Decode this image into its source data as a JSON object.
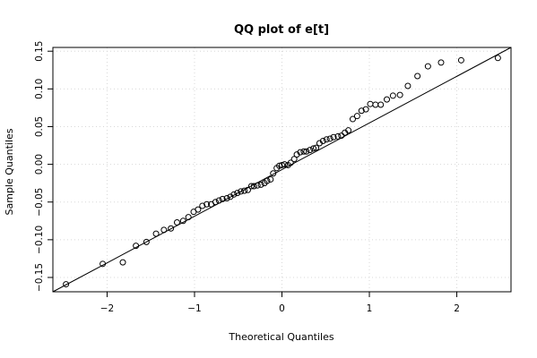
{
  "chart_data": {
    "type": "scatter",
    "title": "QQ plot of e[t]",
    "xlabel": "Theoretical Quantiles",
    "ylabel": "Sample Quantiles",
    "xlim": [
      -2.62,
      2.62
    ],
    "ylim": [
      -0.169,
      0.155
    ],
    "x_ticks": [
      -2,
      -1,
      0,
      1,
      2
    ],
    "y_ticks": [
      -0.15,
      -0.1,
      -0.05,
      0.0,
      0.05,
      0.1,
      0.15
    ],
    "x_tick_labels": [
      "−2",
      "−1",
      "0",
      "1",
      "2"
    ],
    "y_tick_labels": [
      "−0.15",
      "−0.10",
      "−0.05",
      "0.00",
      "0.05",
      "0.10",
      "0.15"
    ],
    "grid": true,
    "reference_line": {
      "x": [
        -2.62,
        2.62
      ],
      "y": [
        -0.169,
        0.155
      ]
    },
    "points": [
      [
        -2.47,
        -0.159
      ],
      [
        -2.05,
        -0.132
      ],
      [
        -1.82,
        -0.13
      ],
      [
        -1.67,
        -0.108
      ],
      [
        -1.55,
        -0.103
      ],
      [
        -1.44,
        -0.092
      ],
      [
        -1.35,
        -0.087
      ],
      [
        -1.27,
        -0.085
      ],
      [
        -1.2,
        -0.077
      ],
      [
        -1.13,
        -0.075
      ],
      [
        -1.07,
        -0.07
      ],
      [
        -1.01,
        -0.063
      ],
      [
        -0.96,
        -0.06
      ],
      [
        -0.91,
        -0.055
      ],
      [
        -0.86,
        -0.053
      ],
      [
        -0.81,
        -0.053
      ],
      [
        -0.76,
        -0.05
      ],
      [
        -0.72,
        -0.048
      ],
      [
        -0.68,
        -0.046
      ],
      [
        -0.63,
        -0.045
      ],
      [
        -0.59,
        -0.043
      ],
      [
        -0.55,
        -0.04
      ],
      [
        -0.51,
        -0.038
      ],
      [
        -0.47,
        -0.036
      ],
      [
        -0.43,
        -0.035
      ],
      [
        -0.39,
        -0.034
      ],
      [
        -0.35,
        -0.029
      ],
      [
        -0.32,
        -0.029
      ],
      [
        -0.28,
        -0.028
      ],
      [
        -0.24,
        -0.027
      ],
      [
        -0.2,
        -0.025
      ],
      [
        -0.17,
        -0.022
      ],
      [
        -0.13,
        -0.02
      ],
      [
        -0.1,
        -0.012
      ],
      [
        -0.06,
        -0.005
      ],
      [
        -0.03,
        -0.002
      ],
      [
        0.0,
        -0.001
      ],
      [
        0.03,
        0.0
      ],
      [
        0.07,
        -0.001
      ],
      [
        0.1,
        0.002
      ],
      [
        0.14,
        0.007
      ],
      [
        0.17,
        0.013
      ],
      [
        0.21,
        0.016
      ],
      [
        0.25,
        0.017
      ],
      [
        0.28,
        0.017
      ],
      [
        0.32,
        0.019
      ],
      [
        0.36,
        0.021
      ],
      [
        0.39,
        0.022
      ],
      [
        0.43,
        0.028
      ],
      [
        0.47,
        0.031
      ],
      [
        0.51,
        0.033
      ],
      [
        0.55,
        0.034
      ],
      [
        0.59,
        0.036
      ],
      [
        0.64,
        0.037
      ],
      [
        0.68,
        0.038
      ],
      [
        0.72,
        0.042
      ],
      [
        0.76,
        0.045
      ],
      [
        0.81,
        0.06
      ],
      [
        0.86,
        0.064
      ],
      [
        0.91,
        0.071
      ],
      [
        0.96,
        0.073
      ],
      [
        1.01,
        0.08
      ],
      [
        1.07,
        0.079
      ],
      [
        1.13,
        0.079
      ],
      [
        1.2,
        0.086
      ],
      [
        1.27,
        0.091
      ],
      [
        1.35,
        0.092
      ],
      [
        1.44,
        0.104
      ],
      [
        1.55,
        0.117
      ],
      [
        1.67,
        0.13
      ],
      [
        1.82,
        0.135
      ],
      [
        2.05,
        0.138
      ],
      [
        2.47,
        0.141
      ]
    ]
  }
}
